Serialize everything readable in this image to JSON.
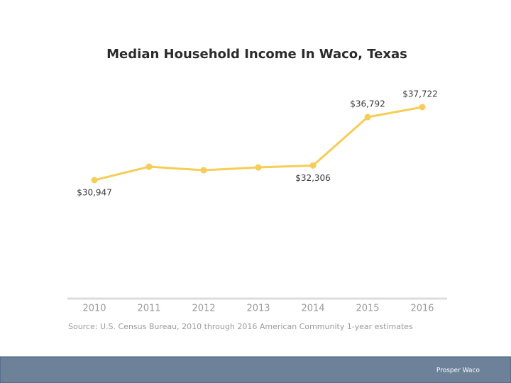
{
  "chart_data": {
    "type": "line",
    "title": "Median Household Income In Waco, Texas",
    "categories": [
      "2010",
      "2011",
      "2012",
      "2013",
      "2014",
      "2015",
      "2016"
    ],
    "values": [
      30947,
      32195,
      31867,
      32130,
      32306,
      36792,
      37722
    ],
    "value_labels": [
      "$30,947",
      null,
      null,
      null,
      "$32,306",
      "$36,792",
      "$37,722"
    ],
    "color": "#f5cd57",
    "source": "Source: U.S. Census Bureau, 2010 through 2016 American Community 1-year estimates"
  },
  "footer": "Prosper Waco"
}
